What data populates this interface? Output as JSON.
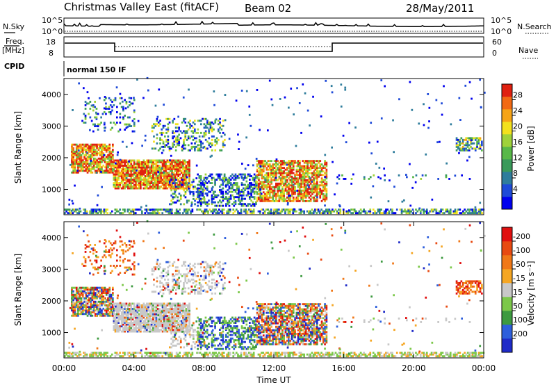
{
  "header": {
    "title": "Christmas Valley East (fitACF)",
    "beam": "Beam 02",
    "date": "28/May/2011"
  },
  "noise_panel": {
    "left_label": "N.Sky",
    "right_label": "N.Search",
    "left_ticks": [
      "10^5",
      "10^0"
    ],
    "right_ticks": [
      "10^5",
      "10^0"
    ]
  },
  "freq_panel": {
    "left_label_1": "Freq.",
    "left_label_2": "[MHz]",
    "right_label": "Nave",
    "left_ticks": [
      "18",
      "8"
    ],
    "right_ticks": [
      "60",
      "0"
    ]
  },
  "cpid_panel": {
    "label": "CPID",
    "value": "normal 150 IF"
  },
  "chart_data": [
    {
      "type": "heatmap",
      "title": "",
      "ylabel": "Slant Range [km]",
      "ylim": [
        200,
        4500
      ],
      "yticks": [
        "1000",
        "2000",
        "3000",
        "4000"
      ],
      "xlim": [
        0,
        24
      ],
      "colorbar": {
        "label": "Power [dB]",
        "ticks": [
          "4",
          "8",
          "12",
          "16",
          "20",
          "24",
          "28"
        ],
        "colors": [
          "#0000ee",
          "#1e4ad8",
          "#2f7d9c",
          "#3a9a5a",
          "#58b848",
          "#9fd23a",
          "#f3e11d",
          "#f6a417",
          "#f26a14",
          "#e02010"
        ]
      }
    },
    {
      "type": "heatmap",
      "title": "",
      "ylabel": "Slant Range [km]",
      "ylim": [
        200,
        4500
      ],
      "yticks": [
        "1000",
        "2000",
        "3000",
        "4000"
      ],
      "xlim": [
        0,
        24
      ],
      "xlabel": "Time UT",
      "xticks": [
        "00:00",
        "04:00",
        "08:00",
        "12:00",
        "16:00",
        "20:00",
        "00:00"
      ],
      "colorbar": {
        "label": "Velocity [m s⁻¹]",
        "ticks": [
          "200",
          "100",
          "50",
          "15",
          "-15",
          "-50",
          "-100",
          "-200"
        ],
        "colors": [
          "#1f2bc8",
          "#2e5fdc",
          "#3d9a40",
          "#7cc84a",
          "#c8c8c8",
          "#f5a623",
          "#f07818",
          "#e84a12",
          "#e01010"
        ]
      }
    }
  ]
}
